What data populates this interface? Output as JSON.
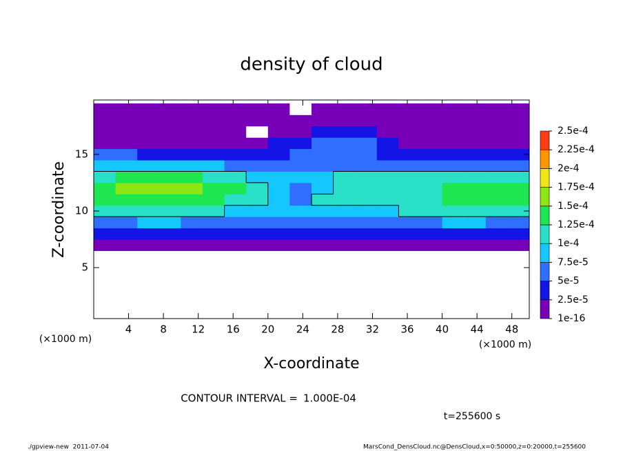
{
  "chart_data": {
    "type": "contour",
    "title": "density of cloud",
    "xlabel": "X-coordinate",
    "ylabel": "Z-coordinate",
    "x_unit": "(×1000 m)",
    "y_unit": "(×1000 m)",
    "contour_label": "CONTOUR INTERVAL =",
    "contour_interval": {
      "value": 0.0001,
      "label": "1.000E-04"
    },
    "time_label": "t=255600 s",
    "footer_left": "./gpview-new  2011-07-04",
    "footer_right": "MarsCond_DensCloud.nc@DensCloud,x=0:50000,z=0:20000,t=255600",
    "xlim": [
      0,
      50
    ],
    "ylim": [
      0.5,
      19.8
    ],
    "xticks": [
      4,
      8,
      12,
      16,
      20,
      24,
      28,
      32,
      36,
      40,
      44,
      48
    ],
    "yticks": [
      5,
      10,
      15
    ],
    "x": [
      1.25,
      3.75,
      6.25,
      8.75,
      11.25,
      13.75,
      16.25,
      18.75,
      21.25,
      23.75,
      26.25,
      28.75,
      31.25,
      33.75,
      36.25,
      38.75,
      41.25,
      43.75,
      46.25,
      48.75
    ],
    "y": [
      1,
      2,
      3,
      4,
      5,
      6,
      7,
      8,
      9,
      10,
      11,
      12,
      13,
      14,
      15,
      16,
      17,
      18,
      19
    ],
    "levels": [
      {
        "value": 1e-16,
        "label": "1e-16"
      },
      {
        "value": 2.5e-05,
        "label": "2.5e-5"
      },
      {
        "value": 5e-05,
        "label": "5e-5"
      },
      {
        "value": 7.5e-05,
        "label": "7.5e-5"
      },
      {
        "value": 0.0001,
        "label": "1e-4"
      },
      {
        "value": 0.000125,
        "label": "1.25e-4"
      },
      {
        "value": 0.00015,
        "label": "1.5e-4"
      },
      {
        "value": 0.000175,
        "label": "1.75e-4"
      },
      {
        "value": 0.0002,
        "label": "2e-4"
      },
      {
        "value": 0.000225,
        "label": "2.25e-4"
      },
      {
        "value": 0.00025,
        "label": "2.5e-4"
      }
    ],
    "colors": [
      "#7800b8",
      "#1414e6",
      "#2f6eff",
      "#14c8ff",
      "#28e0c8",
      "#1ee650",
      "#8ce614",
      "#f0e614",
      "#ff9600",
      "#ff3c14",
      "#ff7ca0"
    ],
    "values": [
      [
        0,
        0,
        0,
        0,
        0,
        0,
        0,
        0,
        0,
        0,
        0,
        0,
        0,
        0,
        0,
        0,
        0,
        0,
        0,
        0
      ],
      [
        0,
        0,
        0,
        0,
        0,
        0,
        0,
        0,
        0,
        0,
        0,
        0,
        0,
        0,
        0,
        0,
        0,
        0,
        0,
        0
      ],
      [
        0,
        0,
        0,
        0,
        0,
        0,
        0,
        0,
        0,
        0,
        0,
        0,
        0,
        0,
        0,
        0,
        0,
        0,
        0,
        0
      ],
      [
        0,
        0,
        0,
        0,
        0,
        0,
        0,
        0,
        0,
        0,
        0,
        0,
        0,
        0,
        0,
        0,
        0,
        0,
        0,
        0
      ],
      [
        0,
        0,
        0,
        0,
        0,
        0,
        0,
        0,
        0,
        0,
        0,
        0,
        0,
        0,
        0,
        0,
        0,
        0,
        0,
        0
      ],
      [
        0,
        0,
        0,
        0,
        0,
        0,
        0,
        0,
        0,
        0,
        0,
        0,
        0,
        0,
        0,
        0,
        0,
        0,
        0,
        0
      ],
      [
        1e-05,
        1e-05,
        1e-05,
        1e-05,
        1e-05,
        1e-05,
        1e-05,
        1e-05,
        1e-05,
        1e-05,
        1e-05,
        1e-05,
        1e-05,
        1e-05,
        1e-05,
        1e-05,
        1e-05,
        1e-05,
        1e-05,
        1e-05
      ],
      [
        4e-05,
        4e-05,
        4e-05,
        4e-05,
        4e-05,
        4e-05,
        4e-05,
        4e-05,
        4e-05,
        4e-05,
        4e-05,
        3e-05,
        3e-05,
        4e-05,
        4e-05,
        4e-05,
        4e-05,
        4e-05,
        4e-05,
        4e-05
      ],
      [
        7e-05,
        7e-05,
        8e-05,
        8e-05,
        7e-05,
        7e-05,
        7e-05,
        7e-05,
        7e-05,
        7e-05,
        7e-05,
        7e-05,
        7e-05,
        7e-05,
        7e-05,
        7e-05,
        8e-05,
        8e-05,
        7e-05,
        7e-05
      ],
      [
        0.000105,
        0.000105,
        0.0001,
        0.0001,
        0.000105,
        0.0001,
        9e-05,
        9e-05,
        8e-05,
        8e-05,
        9e-05,
        8e-05,
        8e-05,
        9e-05,
        0.0001,
        0.0001,
        0.000105,
        0.00011,
        0.000105,
        0.0001
      ],
      [
        0.00013,
        0.000135,
        0.00014,
        0.00014,
        0.000135,
        0.00013,
        0.00012,
        0.0001,
        8e-05,
        7e-05,
        0.0001,
        0.000105,
        0.000105,
        0.000105,
        0.00011,
        0.00011,
        0.00013,
        0.000135,
        0.000135,
        0.00013
      ],
      [
        0.000145,
        0.000155,
        0.00016,
        0.000155,
        0.00015,
        0.00014,
        0.00013,
        0.00011,
        9e-05,
        7e-05,
        8e-05,
        0.000105,
        0.000105,
        0.00011,
        0.000105,
        0.00011,
        0.000125,
        0.00013,
        0.00013,
        0.000125
      ],
      [
        0.00012,
        0.000135,
        0.000145,
        0.00014,
        0.00013,
        0.00012,
        0.00011,
        9e-05,
        8e-05,
        8e-05,
        9e-05,
        0.0001,
        0.0001,
        0.000105,
        0.0001,
        0.000105,
        0.0001,
        0.0001,
        0.000105,
        0.0001
      ],
      [
        8e-05,
        9e-05,
        9e-05,
        8e-05,
        8e-05,
        8e-05,
        7e-05,
        7e-05,
        7e-05,
        7e-05,
        7e-05,
        7e-05,
        6e-05,
        6e-05,
        6e-05,
        6e-05,
        6e-05,
        6e-05,
        6e-05,
        6e-05
      ],
      [
        5e-05,
        5e-05,
        4e-05,
        4e-05,
        4e-05,
        3e-05,
        3e-05,
        3e-05,
        4e-05,
        5e-05,
        6e-05,
        7e-05,
        6e-05,
        4e-05,
        3e-05,
        3e-05,
        3e-05,
        3e-05,
        3e-05,
        3e-05
      ],
      [
        2e-05,
        2e-05,
        2e-05,
        2e-05,
        2e-05,
        2e-05,
        2e-05,
        2e-05,
        3e-05,
        4e-05,
        5e-05,
        6e-05,
        5e-05,
        3e-05,
        2e-05,
        2e-05,
        2e-05,
        2e-05,
        2e-05,
        2e-05
      ],
      [
        1e-05,
        1e-05,
        1e-05,
        1e-05,
        1e-05,
        1e-05,
        1e-05,
        0,
        1e-05,
        2e-05,
        3e-05,
        4e-05,
        3e-05,
        2e-05,
        1e-05,
        1e-05,
        1e-05,
        1e-05,
        1e-05,
        1e-05
      ],
      [
        1e-05,
        1e-05,
        1e-05,
        1e-05,
        1e-05,
        1e-05,
        1e-05,
        1e-05,
        1e-05,
        1e-05,
        1e-05,
        1e-05,
        1e-05,
        1e-05,
        1e-05,
        1e-05,
        1e-05,
        1e-05,
        1e-05,
        1e-05
      ],
      [
        5e-06,
        5e-06,
        5e-06,
        5e-06,
        5e-06,
        5e-06,
        5e-06,
        5e-06,
        5e-06,
        0,
        5e-06,
        5e-06,
        5e-06,
        5e-06,
        5e-06,
        5e-06,
        5e-06,
        5e-06,
        5e-06,
        5e-06
      ]
    ]
  }
}
